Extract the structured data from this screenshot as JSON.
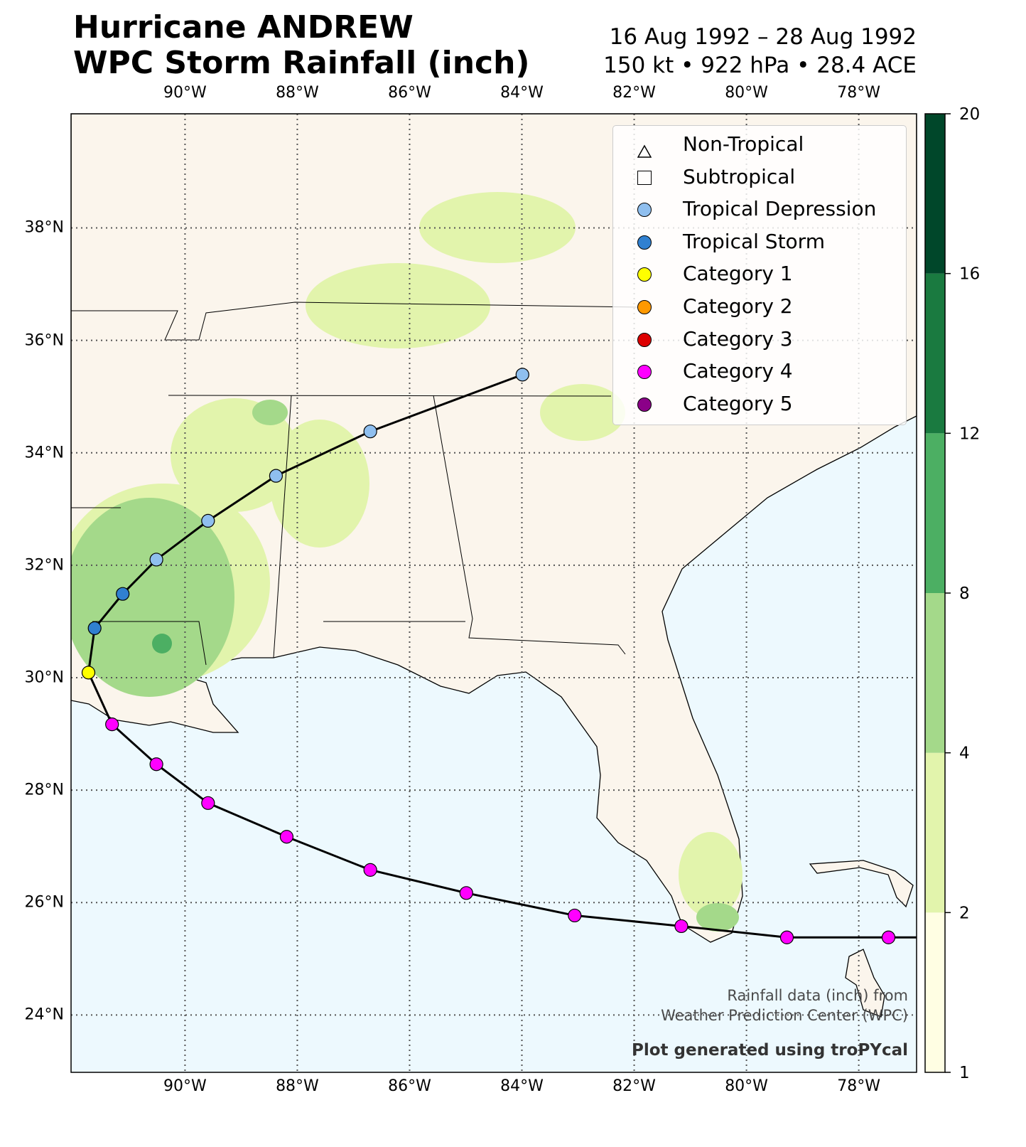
{
  "title": {
    "line1": "Hurricane ANDREW",
    "line2": "WPC Storm Rainfall (inch)"
  },
  "subtitle": {
    "line1": "16 Aug 1992 – 28 Aug 1992",
    "line2": "150 kt • 922 hPa • 28.4 ACE"
  },
  "legend": [
    {
      "label": "Non-Tropical",
      "shape": "triangle",
      "color": "#ffffff"
    },
    {
      "label": "Subtropical",
      "shape": "square",
      "color": "#ffffff"
    },
    {
      "label": "Tropical Depression",
      "shape": "circle",
      "color": "#8fbfef"
    },
    {
      "label": "Tropical Storm",
      "shape": "circle",
      "color": "#3080d0"
    },
    {
      "label": "Category 1",
      "shape": "circle",
      "color": "#ffff00"
    },
    {
      "label": "Category 2",
      "shape": "circle",
      "color": "#ff9900"
    },
    {
      "label": "Category 3",
      "shape": "circle",
      "color": "#dd0000"
    },
    {
      "label": "Category 4",
      "shape": "circle",
      "color": "#ff00ff"
    },
    {
      "label": "Category 5",
      "shape": "circle",
      "color": "#8b0088"
    }
  ],
  "axes": {
    "lon_ticks": [
      {
        "v": -90,
        "label": "90°W"
      },
      {
        "v": -88,
        "label": "88°W"
      },
      {
        "v": -86,
        "label": "86°W"
      },
      {
        "v": -84,
        "label": "84°W"
      },
      {
        "v": -82,
        "label": "82°W"
      },
      {
        "v": -80,
        "label": "80°W"
      },
      {
        "v": -78,
        "label": "78°W"
      }
    ],
    "lat_ticks": [
      {
        "v": 24,
        "label": "24°N"
      },
      {
        "v": 26,
        "label": "26°N"
      },
      {
        "v": 28,
        "label": "28°N"
      },
      {
        "v": 30,
        "label": "30°N"
      },
      {
        "v": 32,
        "label": "32°N"
      },
      {
        "v": 34,
        "label": "34°N"
      },
      {
        "v": 36,
        "label": "36°N"
      },
      {
        "v": 38,
        "label": "38°N"
      }
    ],
    "lon_range": [
      -92.03,
      -76.97
    ],
    "lat_range": [
      22.98,
      40.03
    ]
  },
  "colorbar": {
    "levels": [
      1,
      2,
      4,
      8,
      12,
      16,
      20
    ],
    "labels": [
      "1",
      "2",
      "4",
      "8",
      "12",
      "16",
      "20"
    ],
    "colors": [
      "#fffee3",
      "#e2f4ac",
      "#a4d98a",
      "#4caf63",
      "#1a7a40",
      "#00472a"
    ]
  },
  "track": [
    {
      "lon": -83.99,
      "lat": 35.39,
      "cat": "Tropical Depression"
    },
    {
      "lon": -86.7,
      "lat": 34.38,
      "cat": "Tropical Depression"
    },
    {
      "lon": -88.38,
      "lat": 33.59,
      "cat": "Tropical Depression"
    },
    {
      "lon": -89.59,
      "lat": 32.79,
      "cat": "Tropical Depression"
    },
    {
      "lon": -90.51,
      "lat": 32.1,
      "cat": "Tropical Depression"
    },
    {
      "lon": -91.11,
      "lat": 31.49,
      "cat": "Tropical Storm"
    },
    {
      "lon": -91.61,
      "lat": 30.88,
      "cat": "Tropical Storm"
    },
    {
      "lon": -91.72,
      "lat": 30.09,
      "cat": "Category 1"
    },
    {
      "lon": -91.3,
      "lat": 29.17,
      "cat": "Category 4"
    },
    {
      "lon": -90.51,
      "lat": 28.46,
      "cat": "Category 4"
    },
    {
      "lon": -89.59,
      "lat": 27.77,
      "cat": "Category 4"
    },
    {
      "lon": -88.19,
      "lat": 27.17,
      "cat": "Category 4"
    },
    {
      "lon": -86.7,
      "lat": 26.58,
      "cat": "Category 4"
    },
    {
      "lon": -84.99,
      "lat": 26.17,
      "cat": "Category 4"
    },
    {
      "lon": -83.06,
      "lat": 25.77,
      "cat": "Category 4"
    },
    {
      "lon": -81.16,
      "lat": 25.58,
      "cat": "Category 4"
    },
    {
      "lon": -79.28,
      "lat": 25.38,
      "cat": "Category 4"
    },
    {
      "lon": -77.47,
      "lat": 25.38,
      "cat": "Category 4"
    }
  ],
  "attribution": {
    "line1": "Rainfall data (inch) from",
    "line2": "Weather Prediction Center (WPC)",
    "generated": "Plot generated using troPYcal"
  }
}
